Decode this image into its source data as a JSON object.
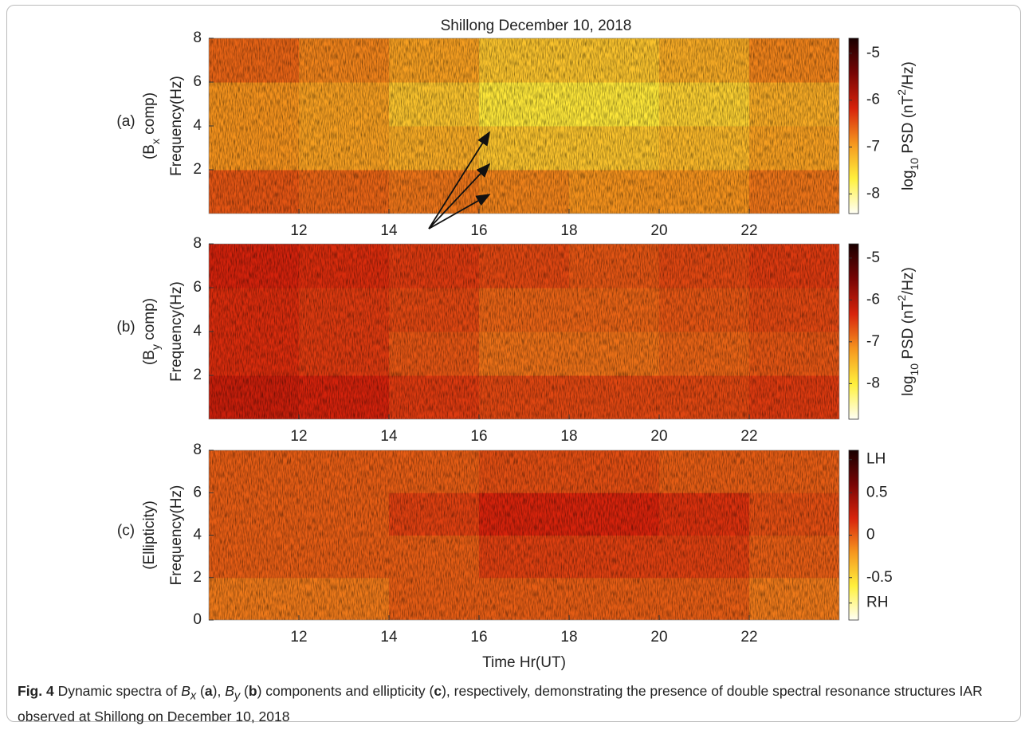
{
  "chart_data": [
    {
      "type": "heatmap",
      "title": "Shillong December 10, 2018",
      "panel_label": "(a)",
      "ylabel_parts": [
        "(B",
        "x",
        " comp)"
      ],
      "ylabel": "Frequency(Hz)",
      "x": [
        11,
        13,
        15,
        17,
        19,
        21,
        23
      ],
      "y": [
        1,
        3,
        5,
        7
      ],
      "z": [
        [
          -6.5,
          -6.6,
          -6.7,
          -6.8,
          -6.9,
          -6.9,
          -6.7
        ],
        [
          -6.9,
          -7.0,
          -7.1,
          -7.3,
          -7.3,
          -7.2,
          -7.0
        ],
        [
          -6.9,
          -7.0,
          -7.3,
          -7.6,
          -7.6,
          -7.4,
          -7.1
        ],
        [
          -6.6,
          -6.8,
          -7.0,
          -7.3,
          -7.3,
          -7.1,
          -6.8
        ]
      ],
      "xlim": [
        10,
        24
      ],
      "xticks": [
        12,
        14,
        16,
        18,
        20,
        22
      ],
      "ylim": [
        0,
        8
      ],
      "yticks": [
        2,
        4,
        6,
        8
      ],
      "clim": [
        -8.42,
        -4.68
      ],
      "cticks": [
        -8,
        -7,
        -6,
        -5
      ],
      "colorbar_label_parts": [
        "log",
        "10",
        " PSD (nT",
        "2",
        "/Hz)"
      ]
    },
    {
      "type": "heatmap",
      "panel_label": "(b)",
      "ylabel_parts": [
        "(B",
        "y",
        " comp)"
      ],
      "ylabel": "Frequency(Hz)",
      "x": [
        11,
        13,
        15,
        17,
        19,
        21,
        23
      ],
      "y": [
        1,
        3,
        5,
        7
      ],
      "z": [
        [
          -6.2,
          -6.3,
          -6.5,
          -6.6,
          -6.6,
          -6.6,
          -6.5
        ],
        [
          -6.4,
          -6.5,
          -6.7,
          -6.9,
          -6.9,
          -6.8,
          -6.7
        ],
        [
          -6.4,
          -6.5,
          -6.6,
          -6.8,
          -6.8,
          -6.7,
          -6.6
        ],
        [
          -6.3,
          -6.4,
          -6.5,
          -6.6,
          -6.7,
          -6.6,
          -6.5
        ]
      ],
      "xlim": [
        10,
        24
      ],
      "xticks": [
        12,
        14,
        16,
        18,
        20,
        22
      ],
      "ylim": [
        0,
        8
      ],
      "yticks": [
        2,
        4,
        6,
        8
      ],
      "clim": [
        -8.85,
        -4.66
      ],
      "cticks": [
        -8,
        -7,
        -6,
        -5
      ],
      "colorbar_label_parts": [
        "log",
        "10",
        " PSD (nT",
        "2",
        "/Hz)"
      ]
    },
    {
      "type": "heatmap",
      "panel_label": "(c)",
      "ylabel_parts": [
        "(Ellipticity)"
      ],
      "ylabel": "Frequency(Hz)",
      "xlabel": "Time Hr(UT)",
      "x": [
        11,
        13,
        15,
        17,
        19,
        21,
        23
      ],
      "y": [
        1,
        3,
        5,
        7
      ],
      "z": [
        [
          -0.1,
          -0.1,
          0,
          0,
          0,
          0,
          -0.1
        ],
        [
          0,
          0,
          0,
          0.1,
          0.1,
          0.1,
          0
        ],
        [
          0,
          0,
          0.1,
          0.2,
          0.2,
          0.15,
          0.05
        ],
        [
          0,
          0,
          0,
          0.05,
          0.05,
          0,
          0
        ]
      ],
      "xlim": [
        10,
        24
      ],
      "xticks": [
        12,
        14,
        16,
        18,
        20,
        22
      ],
      "ylim": [
        0,
        8
      ],
      "yticks": [
        0,
        2,
        4,
        6,
        8
      ],
      "clim": [
        -1,
        1
      ],
      "cticks": [
        {
          "value": -0.8,
          "label": "RH"
        },
        -0.5,
        0,
        0.5,
        {
          "value": 0.89,
          "label": "LH"
        }
      ]
    }
  ],
  "caption": [
    "Fig. 4",
    "  Dynamic spectra of ",
    "B",
    "x",
    " (",
    "a",
    "), ",
    "B",
    "y",
    " (",
    "b",
    ") components and ellipticity (",
    "c",
    "), respectively, demonstrating the presence of double spectral resonance structures IAR observed at Shillong on December 10, 2018"
  ]
}
